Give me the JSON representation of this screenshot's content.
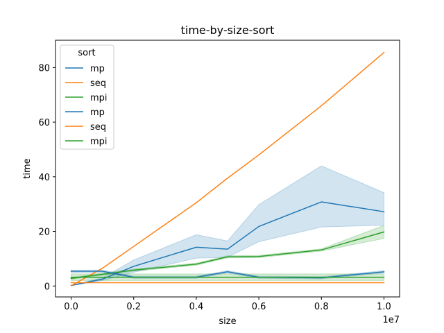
{
  "chart_data": {
    "type": "line",
    "title": "time-by-size-sort",
    "xlabel": "size",
    "ylabel": "time",
    "x_offset_label": "1e7",
    "x_scale": 10000000,
    "xlim": [
      -500000,
      10500000
    ],
    "ylim": [
      -4,
      90
    ],
    "x_ticks": [
      0,
      2000000,
      4000000,
      6000000,
      8000000,
      10000000
    ],
    "x_tick_labels": [
      "0.0",
      "0.2",
      "0.4",
      "0.6",
      "0.8",
      "1.0"
    ],
    "y_ticks": [
      0,
      20,
      40,
      60,
      80
    ],
    "y_tick_labels": [
      "0",
      "20",
      "40",
      "60",
      "80"
    ],
    "grid": false,
    "legend": {
      "title": "sort",
      "placement": "top-left"
    },
    "series": [
      {
        "name": "mp",
        "color": "#1f77b4",
        "x": [
          0,
          1000000,
          2000000,
          4000000,
          5000000,
          6000000,
          8000000,
          10000000
        ],
        "y": [
          0.2,
          2.5,
          7.2,
          14.2,
          13.5,
          21.8,
          30.8,
          27.2
        ],
        "ci_low": [
          0.1,
          2.0,
          5.0,
          10.2,
          10.5,
          16.2,
          21.6,
          22.3
        ],
        "ci_high": [
          0.3,
          3.0,
          9.5,
          18.8,
          16.5,
          29.8,
          44.0,
          34.2
        ]
      },
      {
        "name": "seq",
        "color": "#ff7f0e",
        "x": [
          0,
          1000000,
          2000000,
          4000000,
          5000000,
          6000000,
          8000000,
          10000000
        ],
        "y": [
          0.1,
          6.5,
          14.5,
          30.5,
          39.5,
          48.0,
          66.0,
          85.5
        ]
      },
      {
        "name": "mpi",
        "color": "#2ca02c",
        "x": [
          0,
          1000000,
          2000000,
          4000000,
          5000000,
          6000000,
          8000000,
          10000000
        ],
        "y": [
          2.8,
          4.3,
          5.8,
          8.0,
          10.7,
          10.8,
          13.2,
          19.8
        ],
        "ci_low": [
          2.5,
          3.9,
          5.4,
          7.6,
          10.3,
          10.4,
          12.8,
          17.4
        ],
        "ci_high": [
          3.1,
          4.7,
          6.2,
          8.4,
          11.1,
          11.2,
          13.6,
          22.2
        ]
      },
      {
        "name": "mp",
        "color": "#1f77b4",
        "x": [
          0,
          1000000,
          2000000,
          4000000,
          5000000,
          6000000,
          8000000,
          10000000
        ],
        "y": [
          5.4,
          5.4,
          3.2,
          3.2,
          5.2,
          3.2,
          3.0,
          5.2
        ],
        "ci_low": [
          5.0,
          5.0,
          2.8,
          2.8,
          4.8,
          2.8,
          2.6,
          4.8
        ],
        "ci_high": [
          5.8,
          5.8,
          3.6,
          3.6,
          5.6,
          3.6,
          3.4,
          5.6
        ]
      },
      {
        "name": "seq",
        "color": "#ff7f0e",
        "x": [
          0,
          1000000,
          2000000,
          4000000,
          5000000,
          6000000,
          8000000,
          10000000
        ],
        "y": [
          1.2,
          1.2,
          1.2,
          1.2,
          1.2,
          1.2,
          1.2,
          1.2
        ]
      },
      {
        "name": "mpi",
        "color": "#2ca02c",
        "x": [
          0,
          1000000,
          2000000,
          4000000,
          5000000,
          6000000,
          8000000,
          10000000
        ],
        "y": [
          3.2,
          3.2,
          3.2,
          3.2,
          3.2,
          3.2,
          3.2,
          3.2
        ],
        "ci_low": [
          2.0,
          2.0,
          2.0,
          2.0,
          2.0,
          2.0,
          2.0,
          2.0
        ],
        "ci_high": [
          4.4,
          4.4,
          4.4,
          4.4,
          4.4,
          4.4,
          4.4,
          4.4
        ]
      }
    ]
  }
}
